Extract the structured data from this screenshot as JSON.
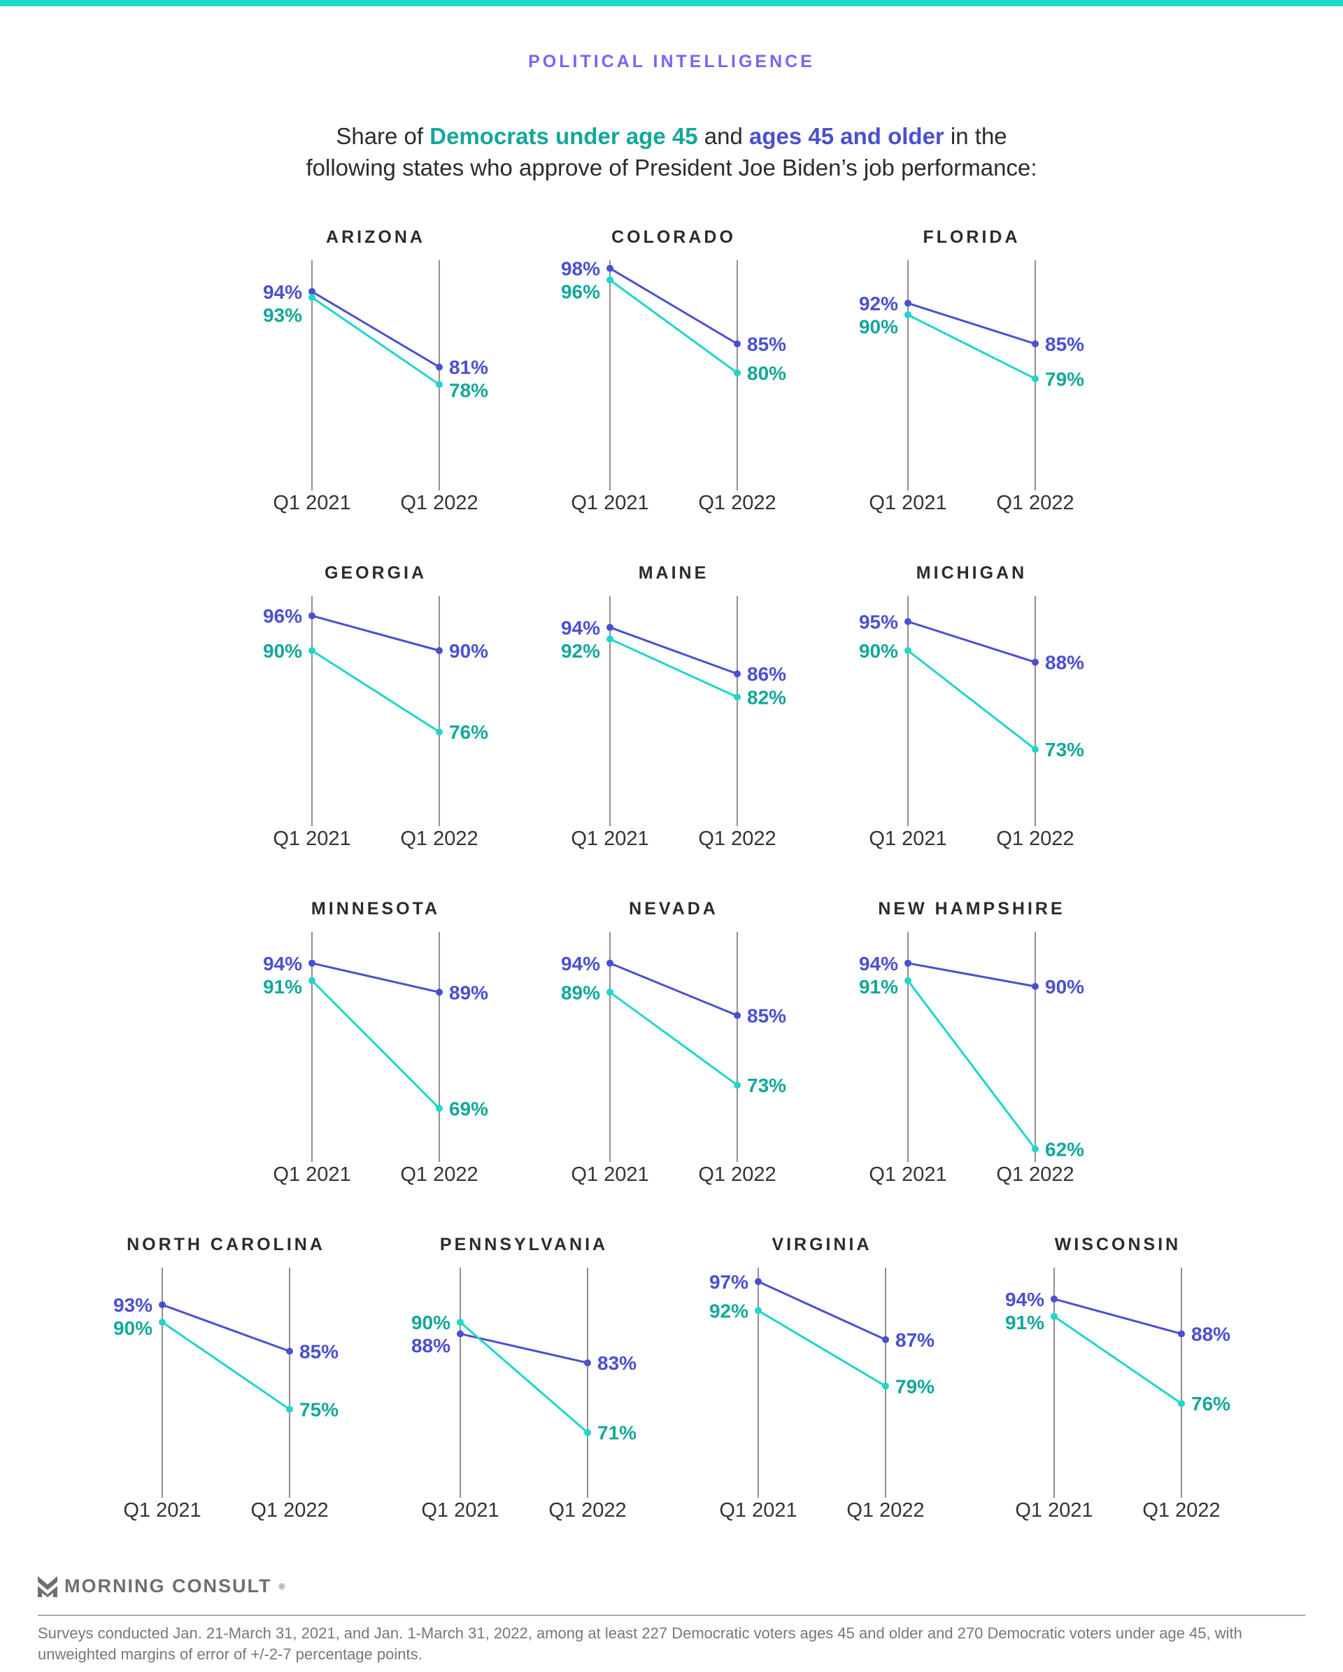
{
  "kicker": "POLITICAL INTELLIGENCE",
  "title": {
    "part1": "Share of ",
    "under45": "Democrats under age 45",
    "part2": " and ",
    "older": "ages 45 and older",
    "part3": " in the",
    "line2": "following states who approve of President Joe Biden’s job performance:"
  },
  "colors": {
    "under45_line": "#1fd6c8",
    "under45_text": "#12a79a",
    "older": "#4a50d0",
    "kicker": "#7d62f5",
    "top_bar": "#1ed9cc"
  },
  "chart_data": {
    "type": "line",
    "x": [
      "Q1 2021",
      "Q1 2022"
    ],
    "series_keys": [
      "older",
      "under45"
    ],
    "panels": [
      {
        "state": "ARIZONA",
        "older": [
          94,
          81
        ],
        "under45": [
          93,
          78
        ]
      },
      {
        "state": "COLORADO",
        "older": [
          98,
          85
        ],
        "under45": [
          96,
          80
        ]
      },
      {
        "state": "FLORIDA",
        "older": [
          92,
          85
        ],
        "under45": [
          90,
          79
        ]
      },
      {
        "state": "GEORGIA",
        "older": [
          96,
          90
        ],
        "under45": [
          90,
          76
        ]
      },
      {
        "state": "MAINE",
        "older": [
          94,
          86
        ],
        "under45": [
          92,
          82
        ]
      },
      {
        "state": "MICHIGAN",
        "older": [
          95,
          88
        ],
        "under45": [
          90,
          73
        ]
      },
      {
        "state": "MINNESOTA",
        "older": [
          94,
          89
        ],
        "under45": [
          91,
          69
        ]
      },
      {
        "state": "NEVADA",
        "older": [
          94,
          85
        ],
        "under45": [
          89,
          73
        ]
      },
      {
        "state": "NEW HAMPSHIRE",
        "older": [
          94,
          90
        ],
        "under45": [
          91,
          62
        ]
      },
      {
        "state": "NORTH CAROLINA",
        "older": [
          93,
          85
        ],
        "under45": [
          90,
          75
        ]
      },
      {
        "state": "PENNSYLVANIA",
        "older": [
          88,
          83
        ],
        "under45": [
          90,
          71
        ]
      },
      {
        "state": "VIRGINIA",
        "older": [
          97,
          87
        ],
        "under45": [
          92,
          79
        ]
      },
      {
        "state": "WISCONSIN",
        "older": [
          94,
          88
        ],
        "under45": [
          91,
          76
        ]
      }
    ]
  },
  "footer": {
    "logo": "MORNING CONSULT",
    "logo_mark": "®",
    "note": "Surveys conducted Jan. 21-March 31, 2021, and Jan. 1-March 31, 2022, among at least 227 Democratic voters ages 45 and older and 270 Democratic voters under age 45, with unweighted margins of error of +/-2-7 percentage points."
  }
}
